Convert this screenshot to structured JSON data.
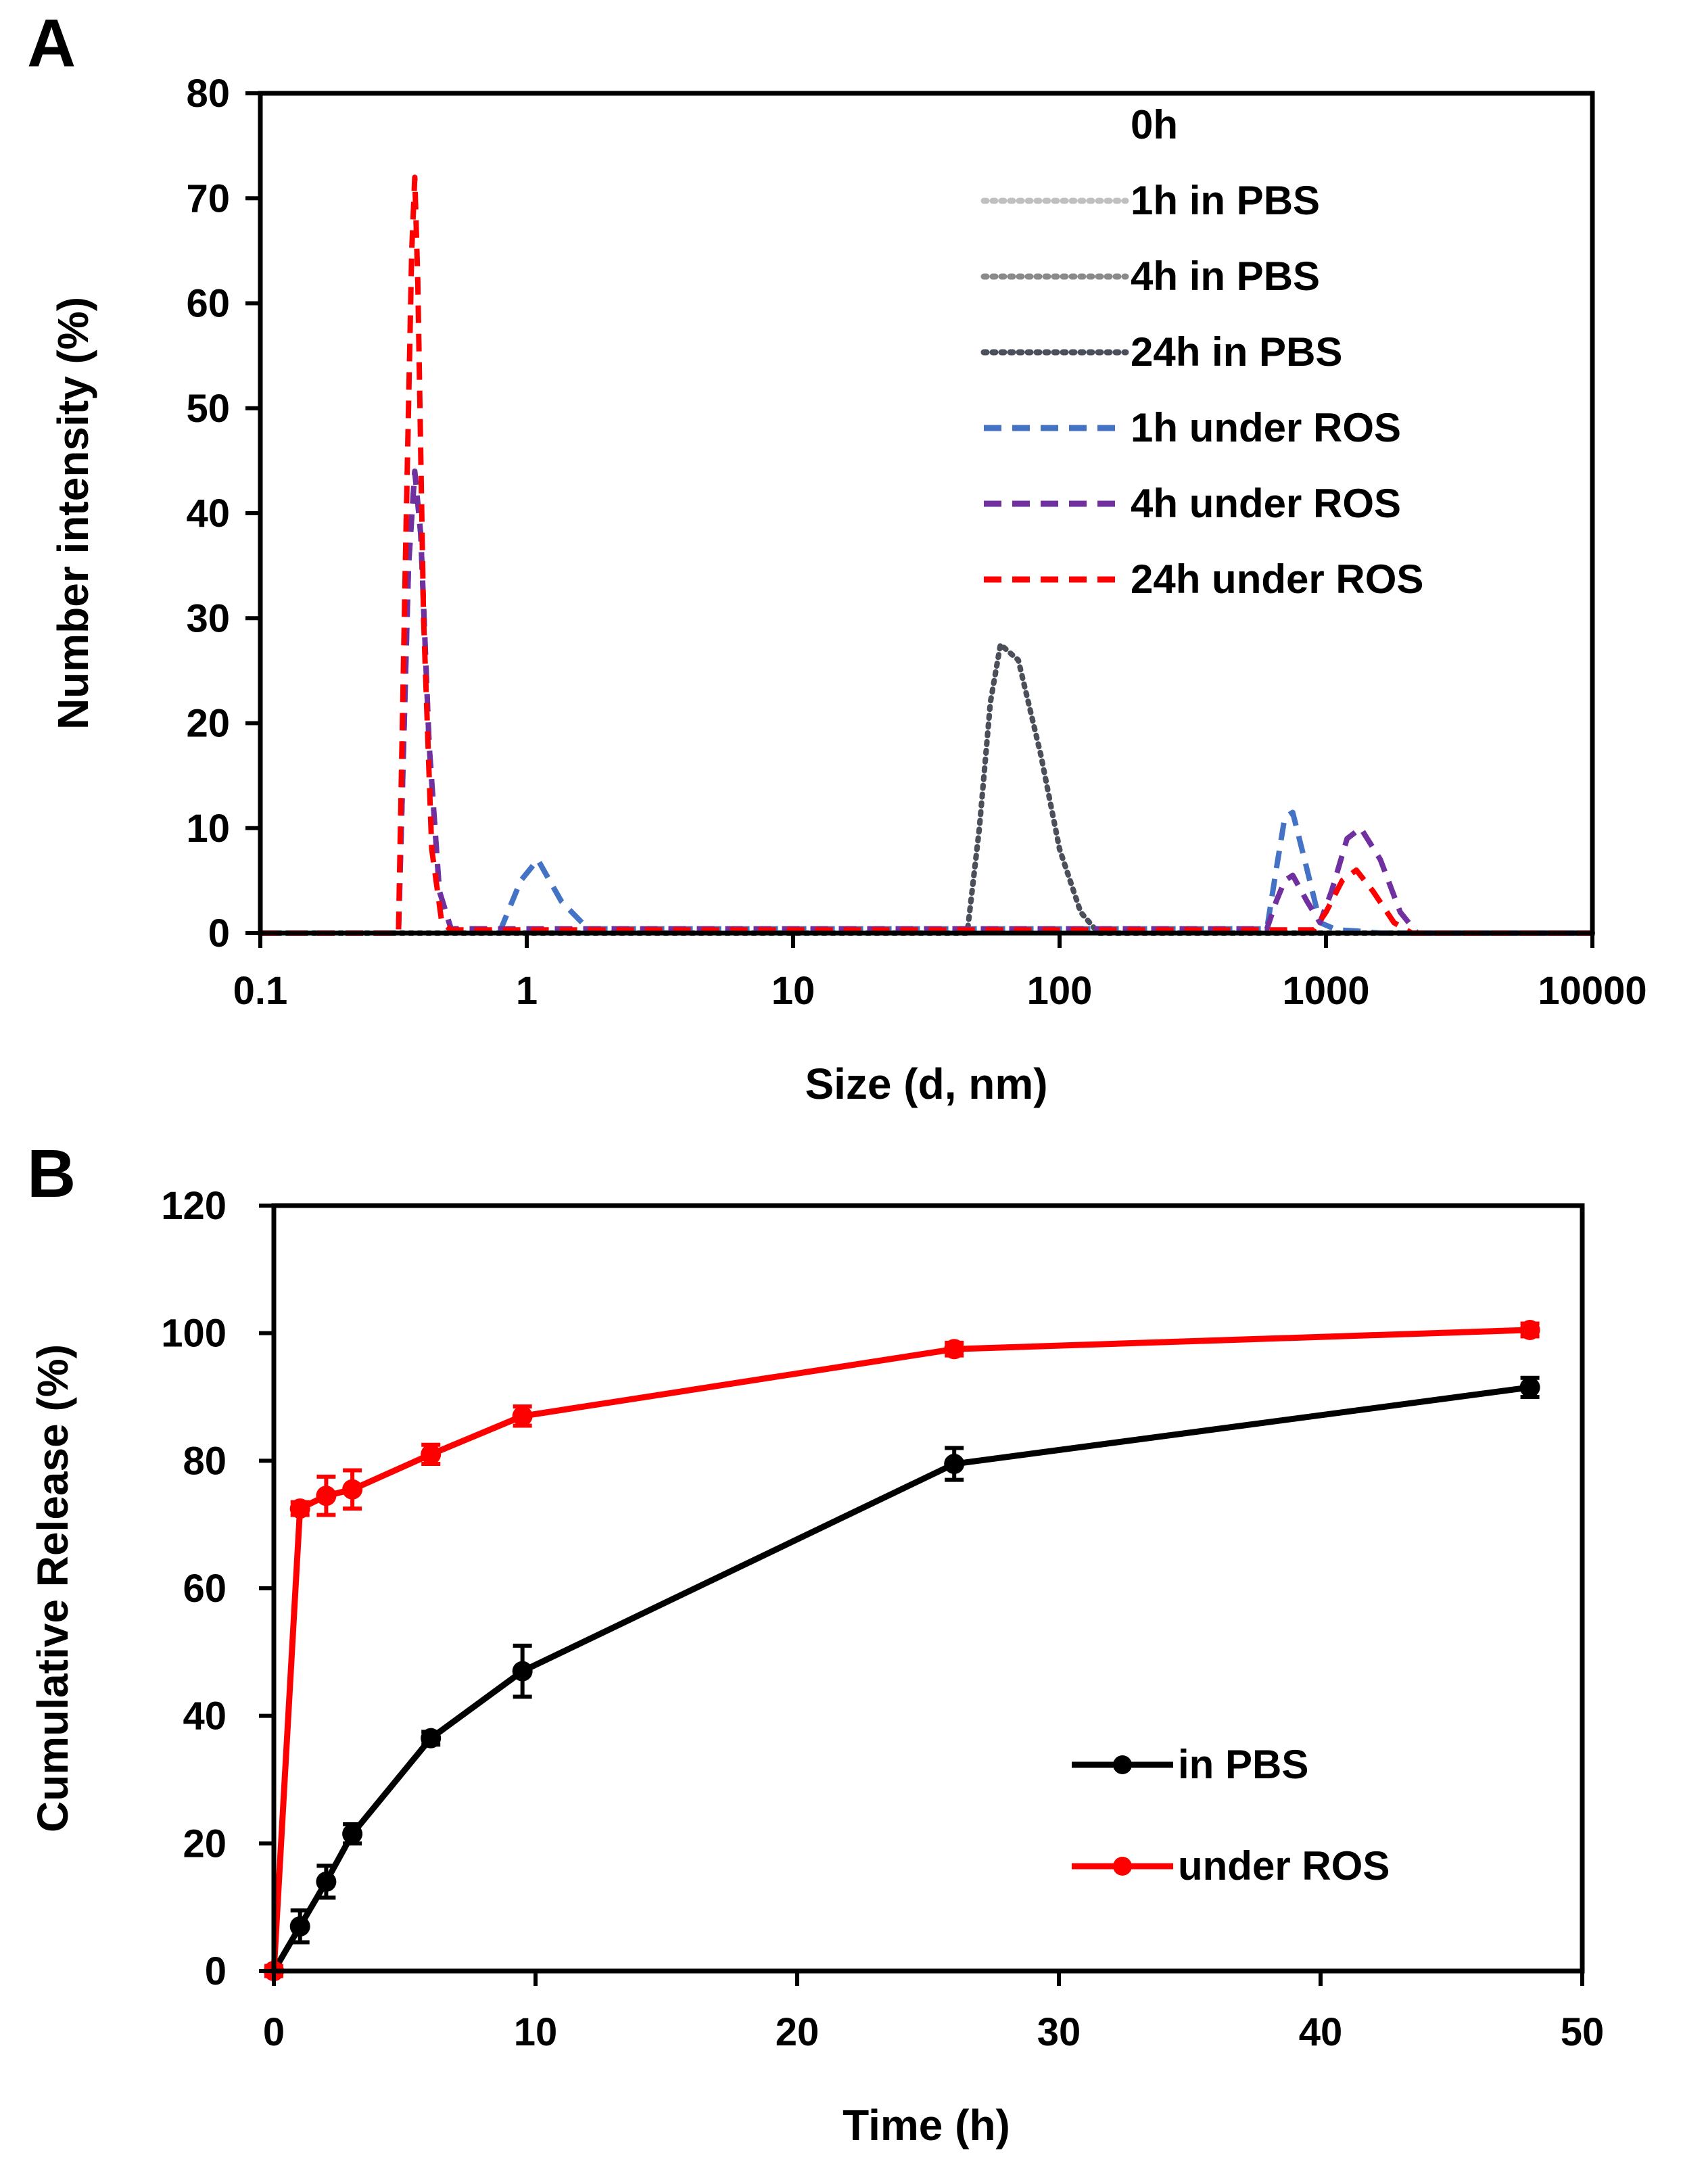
{
  "chart_data": [
    {
      "panel": "A",
      "type": "line",
      "xscale": "log",
      "xlabel": "Size (d, nm)",
      "ylabel": "Number intensity (%)",
      "xlim": [
        0.1,
        10000
      ],
      "ylim": [
        0,
        80
      ],
      "xticks": [
        0.1,
        1,
        10,
        100,
        1000,
        10000
      ],
      "xtick_labels": [
        "0.1",
        "1",
        "10",
        "100",
        "1000",
        "10000"
      ],
      "yticks": [
        0,
        10,
        20,
        30,
        40,
        50,
        60,
        70,
        80
      ],
      "ytick_labels": [
        "0",
        "10",
        "20",
        "30",
        "40",
        "50",
        "60",
        "70",
        "80"
      ],
      "legend_position": "top-right",
      "series": [
        {
          "name": "0h",
          "color": "#ffffff",
          "dash": "solid",
          "x": [
            0.1,
            10000
          ],
          "y": [
            0,
            0
          ]
        },
        {
          "name": "1h in PBS",
          "color": "#c0c0c0",
          "dash": "dot",
          "x": [
            0.1,
            45,
            50,
            55,
            60,
            70,
            85,
            100,
            120,
            140,
            10000
          ],
          "y": [
            0,
            0,
            10,
            22,
            27.5,
            26,
            17,
            8,
            2,
            0,
            0
          ]
        },
        {
          "name": "4h in PBS",
          "color": "#8a8a8a",
          "dash": "dot",
          "x": [
            0.1,
            45,
            50,
            55,
            60,
            70,
            85,
            100,
            120,
            140,
            10000
          ],
          "y": [
            0,
            0,
            10,
            22,
            27.5,
            26,
            17,
            8,
            2,
            0,
            0
          ]
        },
        {
          "name": "24h in PBS",
          "color": "#4a4f5a",
          "dash": "dot",
          "x": [
            0.1,
            45,
            50,
            55,
            60,
            70,
            85,
            100,
            120,
            140,
            10000
          ],
          "y": [
            0,
            0,
            10,
            22,
            27.5,
            26,
            17,
            8,
            2,
            0,
            0
          ]
        },
        {
          "name": "1h under ROS",
          "color": "#4472c4",
          "dash": "dash",
          "x": [
            0.1,
            0.33,
            0.36,
            0.38,
            0.4,
            0.43,
            0.47,
            0.52,
            0.8,
            0.95,
            1.1,
            1.35,
            1.7,
            600,
            650,
            700,
            750,
            850,
            950,
            1100,
            1300,
            1600,
            10000
          ],
          "y": [
            0,
            0,
            35,
            44,
            38,
            18,
            4,
            0.4,
            0.4,
            5,
            7,
            3,
            0.4,
            0.4,
            6,
            11,
            11.5,
            6,
            1,
            0.3,
            0.2,
            0,
            0
          ]
        },
        {
          "name": "4h under ROS",
          "color": "#7030a0",
          "dash": "dash",
          "x": [
            0.1,
            0.33,
            0.36,
            0.38,
            0.4,
            0.43,
            0.47,
            0.52,
            600,
            650,
            700,
            750,
            850,
            950,
            1050,
            1200,
            1350,
            1600,
            1900,
            2200,
            10000
          ],
          "y": [
            0,
            0,
            35,
            44,
            38,
            18,
            4,
            0.4,
            0.4,
            3,
            5,
            5.5,
            3,
            1,
            4,
            9,
            10,
            7,
            2,
            0,
            0
          ]
        },
        {
          "name": "24h under ROS",
          "color": "#ff0000",
          "dash": "dash",
          "x": [
            0.1,
            0.33,
            0.35,
            0.37,
            0.38,
            0.39,
            0.41,
            0.44,
            0.48,
            0.52,
            900,
            1000,
            1150,
            1300,
            1500,
            1800,
            2100,
            10000
          ],
          "y": [
            0,
            0,
            35,
            65,
            72,
            62,
            30,
            8,
            1,
            0.3,
            0.3,
            2,
            5,
            6,
            4,
            1,
            0,
            0
          ]
        }
      ]
    },
    {
      "panel": "B",
      "type": "line",
      "xlabel": "Time (h)",
      "ylabel": "Cumulative Release (%)",
      "xlim": [
        0,
        50
      ],
      "ylim": [
        0,
        120
      ],
      "xticks": [
        0,
        10,
        20,
        30,
        40,
        50
      ],
      "xtick_labels": [
        "0",
        "10",
        "20",
        "30",
        "40",
        "50"
      ],
      "yticks": [
        0,
        20,
        40,
        60,
        80,
        100,
        120
      ],
      "ytick_labels": [
        "0",
        "20",
        "40",
        "60",
        "80",
        "100",
        "120"
      ],
      "legend_position": "bottom-right",
      "series": [
        {
          "name": "in PBS",
          "color": "#000000",
          "x": [
            0,
            1,
            2,
            3,
            6,
            9.5,
            26,
            48
          ],
          "y": [
            0,
            7,
            14,
            21.5,
            36.5,
            47,
            79.5,
            91.5
          ],
          "err": [
            0.8,
            2.5,
            2.5,
            1.5,
            1,
            4,
            2.5,
            1.5
          ]
        },
        {
          "name": "under ROS",
          "color": "#ff0000",
          "x": [
            0,
            1,
            2,
            3,
            6,
            9.5,
            26,
            48
          ],
          "y": [
            0,
            72.5,
            74.5,
            75.5,
            81,
            87,
            97.5,
            100.5
          ],
          "err": [
            0.8,
            1,
            3,
            3,
            1.5,
            1.5,
            1,
            1
          ]
        }
      ]
    }
  ]
}
